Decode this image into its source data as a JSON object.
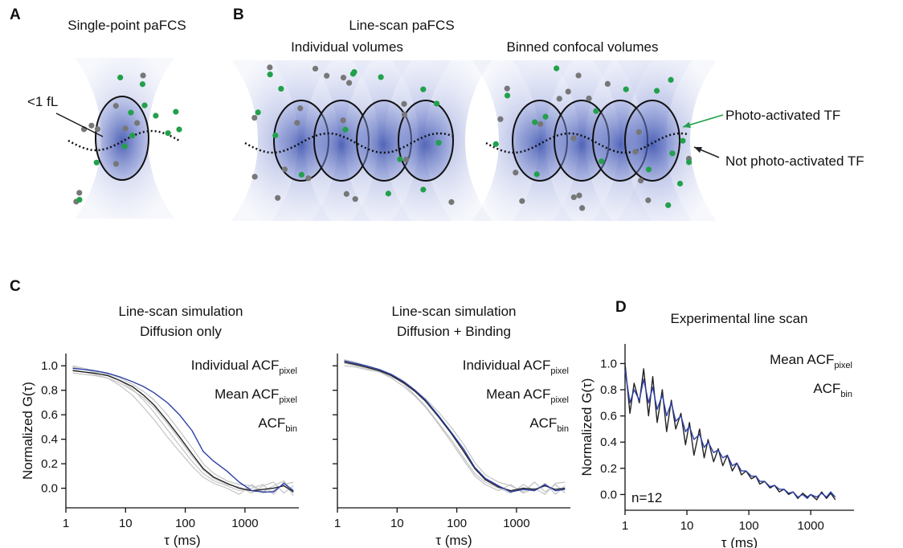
{
  "panels": [
    {
      "label": "A",
      "title": "Single-point paFCS",
      "annotation": "<1 fL"
    },
    {
      "label": "B",
      "title": "Line-scan paFCS",
      "subtitles": [
        "Individual volumes",
        "Binned confocal volumes"
      ]
    }
  ],
  "legend": [
    {
      "text": "Photo-activated TF",
      "color": "#22a04b"
    },
    {
      "text": "Not photo-activated TF",
      "color": "#222222"
    }
  ],
  "chart_data": [
    {
      "type": "line",
      "panel": "C",
      "title": [
        "Line-scan simulation",
        "Diffusion only"
      ],
      "xlabel": "τ (ms)",
      "ylabel": "Normalized G(τ)",
      "xlog": true,
      "xlim": [
        1,
        8000
      ],
      "xticks": [
        1,
        10,
        100,
        1000
      ],
      "ylim": [
        -0.16,
        1.1
      ],
      "yticks": [
        {
          "value": 0,
          "label": "0.0"
        },
        0.2,
        0.4,
        0.6,
        0.8,
        {
          "value": 1,
          "label": "1.0"
        }
      ],
      "show_ytick_labels": true,
      "x": [
        1.3,
        2,
        3,
        5,
        8,
        13,
        20,
        30,
        50,
        80,
        130,
        200,
        300,
        500,
        800,
        1300,
        2000,
        3000,
        4500,
        6500
      ],
      "series": [
        {
          "name": "Individual ACF",
          "subscript": "pixel",
          "color": "#c4c4c4",
          "lines": [
            [
              1.0,
              0.98,
              0.96,
              0.93,
              0.88,
              0.81,
              0.72,
              0.62,
              0.48,
              0.35,
              0.22,
              0.12,
              0.06,
              0.02,
              -0.02,
              0.0,
              0.03,
              -0.05,
              0.05,
              -0.06
            ],
            [
              0.94,
              0.93,
              0.92,
              0.9,
              0.86,
              0.8,
              0.74,
              0.66,
              0.53,
              0.4,
              0.26,
              0.15,
              0.08,
              0.03,
              0.01,
              -0.04,
              0.02,
              0.05,
              -0.04,
              0.02
            ],
            [
              0.97,
              0.95,
              0.93,
              0.9,
              0.84,
              0.76,
              0.66,
              0.56,
              0.42,
              0.3,
              0.18,
              0.09,
              0.04,
              0.0,
              -0.05,
              0.03,
              -0.03,
              0.02,
              0.06,
              -0.04
            ],
            [
              0.99,
              0.97,
              0.95,
              0.94,
              0.9,
              0.85,
              0.79,
              0.72,
              0.6,
              0.47,
              0.33,
              0.2,
              0.12,
              0.06,
              0.03,
              0.02,
              -0.04,
              -0.02,
              0.03,
              0.05
            ]
          ]
        },
        {
          "name": "Mean ACF",
          "subscript": "pixel",
          "color": "#222222",
          "values": [
            0.96,
            0.95,
            0.94,
            0.92,
            0.88,
            0.83,
            0.76,
            0.68,
            0.55,
            0.42,
            0.28,
            0.16,
            0.09,
            0.04,
            0.0,
            -0.02,
            -0.01,
            0.0,
            0.02,
            -0.03
          ]
        },
        {
          "name": "ACF",
          "subscript": "bin",
          "color": "#2c3fa8",
          "values": [
            0.98,
            0.97,
            0.96,
            0.94,
            0.91,
            0.87,
            0.83,
            0.78,
            0.7,
            0.6,
            0.47,
            0.3,
            0.22,
            0.14,
            0.05,
            -0.02,
            -0.03,
            -0.03,
            0.04,
            -0.02
          ]
        }
      ]
    },
    {
      "type": "line",
      "title": [
        "Line-scan simulation",
        "Diffusion + Binding"
      ],
      "xlabel": "τ (ms)",
      "xlog": true,
      "xlim": [
        1,
        8000
      ],
      "xticks": [
        1,
        10,
        100,
        1000
      ],
      "ylim": [
        -0.16,
        1.1
      ],
      "yticks": [
        0,
        0.2,
        0.4,
        0.6,
        0.8,
        1
      ],
      "show_ytick_labels": false,
      "x": [
        1.3,
        2,
        3,
        5,
        8,
        13,
        20,
        30,
        50,
        80,
        130,
        200,
        300,
        500,
        800,
        1300,
        2000,
        3000,
        4500,
        6500
      ],
      "series": [
        {
          "name": "Individual ACF",
          "subscript": "pixel",
          "color": "#c4c4c4",
          "lines": [
            [
              1.05,
              1.03,
              1.0,
              0.97,
              0.92,
              0.85,
              0.76,
              0.67,
              0.53,
              0.4,
              0.25,
              0.12,
              0.05,
              0.0,
              -0.04,
              0.03,
              -0.02,
              0.04,
              -0.05,
              0.02
            ],
            [
              1.0,
              0.99,
              0.97,
              0.95,
              0.91,
              0.86,
              0.8,
              0.73,
              0.62,
              0.5,
              0.36,
              0.21,
              0.11,
              0.05,
              0.02,
              -0.03,
              0.05,
              -0.03,
              0.03,
              -0.04
            ],
            [
              1.02,
              1.0,
              0.98,
              0.95,
              0.9,
              0.83,
              0.75,
              0.66,
              0.52,
              0.38,
              0.23,
              0.1,
              0.03,
              -0.02,
              0.03,
              -0.04,
              0.0,
              -0.05,
              0.04,
              0.05
            ]
          ]
        },
        {
          "name": "Mean ACF",
          "subscript": "pixel",
          "color": "#222222",
          "values": [
            1.03,
            1.01,
            0.99,
            0.96,
            0.92,
            0.86,
            0.79,
            0.71,
            0.58,
            0.45,
            0.3,
            0.16,
            0.07,
            0.01,
            -0.02,
            0.0,
            -0.01,
            0.02,
            -0.01,
            0.0
          ]
        },
        {
          "name": "ACF",
          "subscript": "bin",
          "color": "#2c3fa8",
          "values": [
            1.04,
            1.02,
            1.0,
            0.97,
            0.93,
            0.87,
            0.8,
            0.72,
            0.59,
            0.46,
            0.32,
            0.17,
            0.08,
            0.02,
            -0.03,
            -0.01,
            -0.02,
            0.03,
            -0.02,
            -0.01
          ]
        }
      ]
    },
    {
      "type": "line",
      "panel": "D",
      "title": [
        "Experimental line scan"
      ],
      "xlabel": "τ (ms)",
      "ylabel": "Normalized G(τ)",
      "xlog": true,
      "annotation": "n=12",
      "xlim": [
        1,
        5000
      ],
      "xticks": [
        1,
        10,
        100,
        1000
      ],
      "ylim": [
        -0.12,
        1.15
      ],
      "yticks": [
        {
          "value": 0,
          "label": "0.0"
        },
        0.2,
        0.4,
        0.6,
        0.8,
        {
          "value": 1,
          "label": "1.0"
        }
      ],
      "show_ytick_labels": true,
      "x": [
        1,
        1.2,
        1.4,
        1.7,
        2,
        2.4,
        2.8,
        3.3,
        4,
        4.7,
        5.6,
        6.6,
        8,
        9.5,
        11,
        13,
        16,
        19,
        22,
        27,
        32,
        38,
        45,
        54,
        64,
        76,
        90,
        110,
        130,
        150,
        180,
        220,
        260,
        310,
        370,
        440,
        520,
        620,
        740,
        880,
        1000,
        1250,
        1500,
        1800,
        2100,
        2500
      ],
      "series": [
        {
          "name": "Mean ACF",
          "subscript": "pixel",
          "color": "#222222",
          "values": [
            1.0,
            0.62,
            0.85,
            0.7,
            0.96,
            0.6,
            0.9,
            0.55,
            0.8,
            0.48,
            0.72,
            0.5,
            0.62,
            0.38,
            0.55,
            0.3,
            0.5,
            0.28,
            0.42,
            0.25,
            0.35,
            0.22,
            0.3,
            0.18,
            0.24,
            0.15,
            0.18,
            0.12,
            0.14,
            0.08,
            0.1,
            0.05,
            0.07,
            0.02,
            0.04,
            0.0,
            0.02,
            -0.03,
            0.01,
            -0.02,
            0.0,
            -0.04,
            0.02,
            -0.03,
            0.01,
            -0.04
          ]
        },
        {
          "name": "ACF",
          "subscript": "bin",
          "color": "#2c3fa8",
          "values": [
            0.95,
            0.7,
            0.8,
            0.72,
            0.88,
            0.7,
            0.82,
            0.65,
            0.76,
            0.6,
            0.7,
            0.56,
            0.6,
            0.48,
            0.52,
            0.42,
            0.46,
            0.36,
            0.4,
            0.32,
            0.34,
            0.28,
            0.3,
            0.22,
            0.24,
            0.18,
            0.18,
            0.14,
            0.14,
            0.1,
            0.1,
            0.06,
            0.07,
            0.04,
            0.04,
            0.01,
            0.02,
            -0.02,
            0.0,
            -0.03,
            0.0,
            -0.02,
            0.01,
            -0.02,
            0.02,
            -0.02
          ]
        }
      ]
    }
  ]
}
